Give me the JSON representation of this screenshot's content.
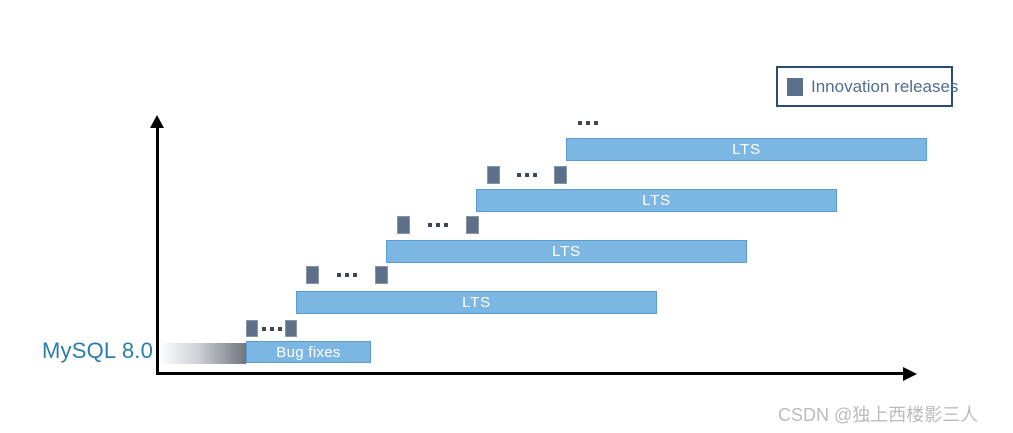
{
  "axis": {
    "y_label": "MySQL 8.0"
  },
  "rows": [
    {
      "label": "Bug fixes",
      "innovation_markers": 2,
      "more_indicator": "..."
    },
    {
      "label": "LTS",
      "innovation_markers": 2,
      "more_indicator": "..."
    },
    {
      "label": "LTS",
      "innovation_markers": 2,
      "more_indicator": "..."
    },
    {
      "label": "LTS",
      "innovation_markers": 2,
      "more_indicator": "..."
    },
    {
      "label": "LTS",
      "innovation_markers": 0,
      "more_indicator": "..."
    }
  ],
  "legend": {
    "label": "Innovation releases"
  },
  "watermark": {
    "text": "CSDN @独上西楼影三人"
  },
  "colors": {
    "bar_blue": "#7CB7E4",
    "bar_border": "#5A9BD0",
    "innovation_slate": "#5C7189",
    "legend_border": "#2A4B73",
    "legend_text": "#4F6E91",
    "mysql_blue": "#2A7FA8",
    "axis_black": "#000000",
    "gradient_dark": "#6E757C",
    "watermark_gray": "#BBBBBB"
  }
}
